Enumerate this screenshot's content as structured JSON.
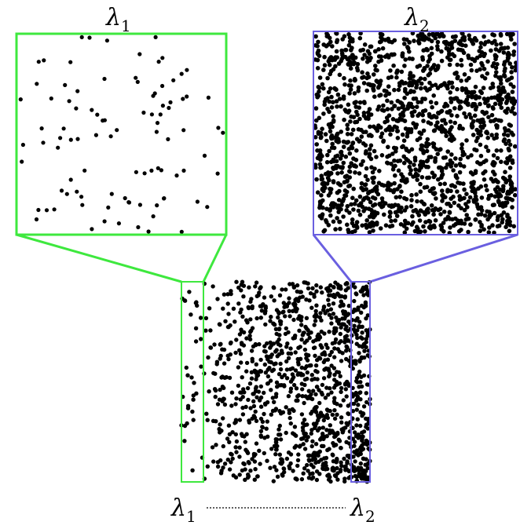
{
  "labels": {
    "top_left": {
      "main": "λ",
      "sub": "1"
    },
    "top_right": {
      "main": "λ",
      "sub": "2"
    },
    "bottom_left": {
      "main": "λ",
      "sub": "1"
    },
    "bottom_right": {
      "main": "λ",
      "sub": "2"
    }
  },
  "colors": {
    "green": "#3ee83e",
    "blue": "#6a5fe0",
    "points": "#000000"
  },
  "densities": {
    "lambda1_inset_points": 95,
    "lambda2_inset_points": 1600,
    "gradient_points": 1200
  }
}
